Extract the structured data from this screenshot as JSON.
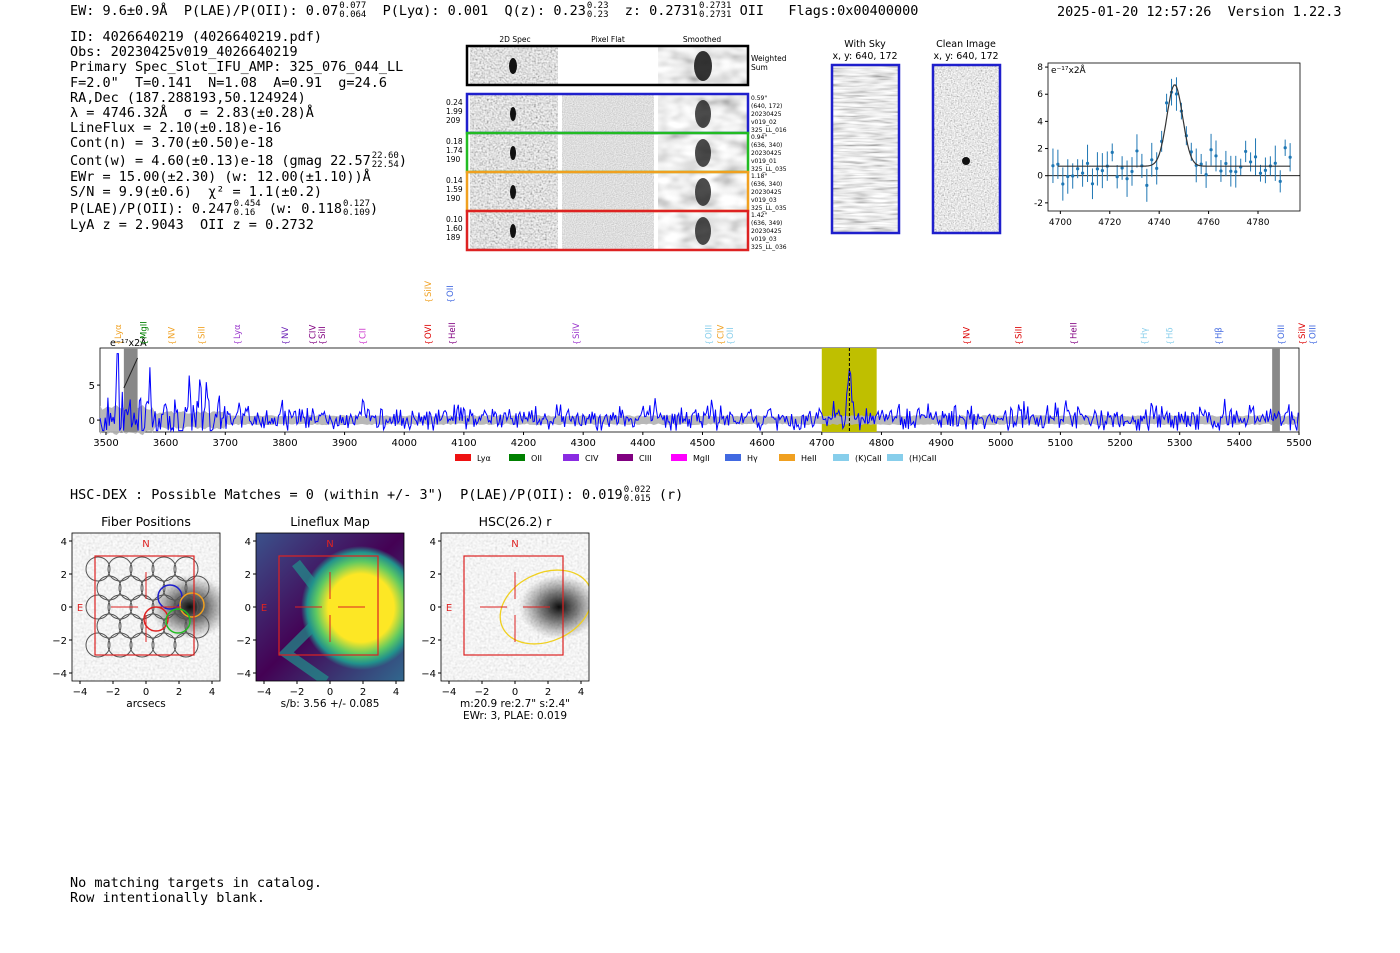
{
  "header": {
    "ew": "EW: 9.6±0.9Å",
    "plae_label": "P(LAE)/P(OII): 0.07",
    "plae_hi": "0.077",
    "plae_lo": "0.064",
    "plya": "P(Lyα): 0.001",
    "qz_label": "Q(z): 0.23",
    "qz_hi": "0.23",
    "qz_lo": "0.23",
    "z_label": "z: 0.2731",
    "z_hi": "0.2731",
    "z_lo": "0.2731",
    "z_line": "OII",
    "flags": "Flags:0x00400000",
    "datetime": "2025-01-20 12:57:26",
    "version": "Version 1.22.3"
  },
  "info": {
    "id": "ID: 4026640219 (4026640219.pdf)",
    "obs": "Obs: 20230425v019_4026640219",
    "primary": "Primary Spec_Slot_IFU_AMP: 325_076_044_LL",
    "fit": "F=2.0\"  T=0.141  N=1.08  A=0.91  g=24.6",
    "radec": "RA,Dec (187.288193,50.124924)",
    "lambda": "λ = 4746.32Å  σ = 2.83(±0.28)Å",
    "lineflux": "LineFlux = 2.10(±0.18)e-16",
    "contn": "Cont(n) = 3.70(±0.50)e-18",
    "contw": "Cont(w) = 4.60(±0.13)e-18 (gmag 22.57",
    "contw_hi": "22.60",
    "contw_lo": "22.54",
    "contw_close": ")",
    "ewr": "EWr = 15.00(±2.30) (w: 12.00(±1.10))Å",
    "sn": "S/N = 9.9(±0.6)  χ² = 1.1(±0.2)",
    "plae": "P(LAE)/P(OII): 0.247",
    "plae_hi": "0.454",
    "plae_lo": "0.16",
    "plae_w": "(w: 0.118",
    "plae_w_hi": "0.127",
    "plae_w_lo": "0.109",
    "plae_w_close": ")",
    "lyaz": "LyA z = 2.9043  OII z = 0.2732"
  },
  "cutouts": {
    "col_2d": "2D Spec",
    "col_flat": "Pixel Flat",
    "col_smooth": "Smoothed",
    "weighted": "Weighted",
    "sum": "Sum",
    "rows": [
      {
        "v1": "0.24",
        "v2": "1.99",
        "v3": "209",
        "color": "#1f1fcc",
        "i1": "0.59\"",
        "i2": "(640, 172)",
        "i3": "20230425",
        "i4": "v019_02",
        "i5": "325_LL_016"
      },
      {
        "v1": "0.18",
        "v2": "1.74",
        "v3": "190",
        "color": "#22bb22",
        "i1": "0.94\"",
        "i2": "(636, 340)",
        "i3": "20230425",
        "i4": "v019_01",
        "i5": "325_LL_035"
      },
      {
        "v1": "0.14",
        "v2": "1.59",
        "v3": "190",
        "color": "#f0a020",
        "i1": "1.18\"",
        "i2": "(636, 340)",
        "i3": "20230425",
        "i4": "v019_03",
        "i5": "325_LL_035"
      },
      {
        "v1": "0.10",
        "v2": "1.60",
        "v3": "189",
        "color": "#dd2222",
        "i1": "1.42\"",
        "i2": "(636, 349)",
        "i3": "20230425",
        "i4": "v019_03",
        "i5": "325_LL_036"
      }
    ]
  },
  "sky": {
    "with_sky": "With Sky",
    "with_sky_xy": "x, y: 640, 172",
    "clean": "Clean Image",
    "clean_xy": "x, y: 640, 172"
  },
  "zoom_chart_data": {
    "type": "line",
    "ylabel": "e⁻¹⁷x2Å",
    "xlim": [
      4695,
      4797
    ],
    "ylim": [
      -2.6,
      8.3
    ],
    "xticks": [
      "4700",
      "4720",
      "4740",
      "4760",
      "4780"
    ],
    "yticks": [
      "-2",
      "0",
      "2",
      "4",
      "6",
      "8"
    ]
  },
  "chart_data": {
    "type": "line",
    "title": "",
    "ylabel": "e⁻¹⁷x2Å",
    "xlim": [
      3490,
      5500
    ],
    "ylim": [
      -1.7,
      10.3
    ],
    "xticks": [
      "3500",
      "3600",
      "3700",
      "3800",
      "3900",
      "4000",
      "4100",
      "4200",
      "4300",
      "4400",
      "4500",
      "4600",
      "4700",
      "4800",
      "4900",
      "5000",
      "5100",
      "5200",
      "5300",
      "5400",
      "5500"
    ],
    "yticks": [
      "0",
      "5"
    ],
    "highlight_range": [
      4700,
      4792
    ],
    "line_center": 4746.3,
    "series": [
      {
        "name": "spectrum",
        "color": "#0000ff"
      },
      {
        "name": "error",
        "color": "#aaaaaa"
      }
    ],
    "line_markers": [
      {
        "label": "Lyα",
        "x": 3520,
        "color": "#f0a020"
      },
      {
        "label": "MgII",
        "x": 3563,
        "color": "#008000"
      },
      {
        "label": "NV",
        "x": 3610,
        "color": "#f0a020"
      },
      {
        "label": "SiII",
        "x": 3660,
        "color": "#f0a020"
      },
      {
        "label": "Lyα",
        "x": 3720,
        "color": "#9933cc"
      },
      {
        "label": "NV",
        "x": 3800,
        "color": "#6a1fb5"
      },
      {
        "label": "CIV",
        "x": 3846,
        "color": "#800080"
      },
      {
        "label": "SiII",
        "x": 3862,
        "color": "#800080"
      },
      {
        "label": "CII",
        "x": 3930,
        "color": "#cc33cc"
      },
      {
        "label": "OVI",
        "x": 4040,
        "color": "#dd0000"
      },
      {
        "label": "HeII",
        "x": 4080,
        "color": "#800080"
      },
      {
        "label": "SiIV",
        "x": 4288,
        "color": "#9933cc"
      },
      {
        "label": "OIII",
        "x": 4510,
        "color": "#87ceeb"
      },
      {
        "label": "CIV",
        "x": 4530,
        "color": "#f0a020"
      },
      {
        "label": "OII",
        "x": 4546,
        "color": "#87ceeb"
      },
      {
        "label": "NV",
        "x": 4943,
        "color": "#dd0000"
      },
      {
        "label": "SiII",
        "x": 5030,
        "color": "#dd0000"
      },
      {
        "label": "HeII",
        "x": 5122,
        "color": "#800080"
      },
      {
        "label": "Hγ",
        "x": 5240,
        "color": "#87ceeb"
      },
      {
        "label": "Hδ",
        "x": 5283,
        "color": "#87ceeb"
      },
      {
        "label": "Hβ",
        "x": 5365,
        "color": "#4169e1"
      },
      {
        "label": "OIII",
        "x": 5470,
        "color": "#4169e1"
      },
      {
        "label": "SiIV",
        "x": 5505,
        "color": "#dd0000"
      },
      {
        "label": "OIII",
        "x": 5523,
        "color": "#4169e1"
      }
    ],
    "upper_markers": [
      {
        "label": "SiIV",
        "x": 4040,
        "color": "#f0a020"
      },
      {
        "label": "OII",
        "x": 4077,
        "color": "#4169e1"
      }
    ],
    "legend": [
      {
        "label": "Lyα",
        "color": "#ee1111"
      },
      {
        "label": "OII",
        "color": "#008000"
      },
      {
        "label": "CIV",
        "color": "#8a2be2"
      },
      {
        "label": "CIII",
        "color": "#800080"
      },
      {
        "label": "MgII",
        "color": "#ff00ff"
      },
      {
        "label": "Hγ",
        "color": "#4169e1"
      },
      {
        "label": "HeII",
        "color": "#f0a020"
      },
      {
        "label": "(K)CaII",
        "color": "#87ceeb"
      },
      {
        "label": "(H)CaII",
        "color": "#87ceeb"
      }
    ]
  },
  "hsc_dex": {
    "text": "HSC-DEX : Possible Matches = 0 (within +/- 3\")  P(LAE)/P(OII): 0.019",
    "hi": "0.022",
    "lo": "0.015",
    "band": "(r)"
  },
  "panels": [
    {
      "title": "Fiber Positions",
      "xlabel": "arcsecs",
      "xlabel2": "",
      "xlabel3": ""
    },
    {
      "title": "Lineflux Map",
      "xlabel": "s/b: 3.56 +/- 0.085",
      "xlabel2": "",
      "xlabel3": ""
    },
    {
      "title": "HSC(26.2) r",
      "xlabel": "m:20.9  re:2.7\"  s:2.4\"",
      "xlabel2": "EWr: 3, PLAE: 0.019",
      "xlabel3": ""
    }
  ],
  "panel_ticks": {
    "x": [
      "−4",
      "−2",
      "0",
      "2",
      "4"
    ],
    "y": [
      "4",
      "2",
      "0",
      "−2",
      "−4"
    ]
  },
  "compass": {
    "n": "N",
    "e": "E"
  },
  "footer": {
    "line1": "No matching targets in catalog.",
    "line2": "Row intentionally blank."
  }
}
